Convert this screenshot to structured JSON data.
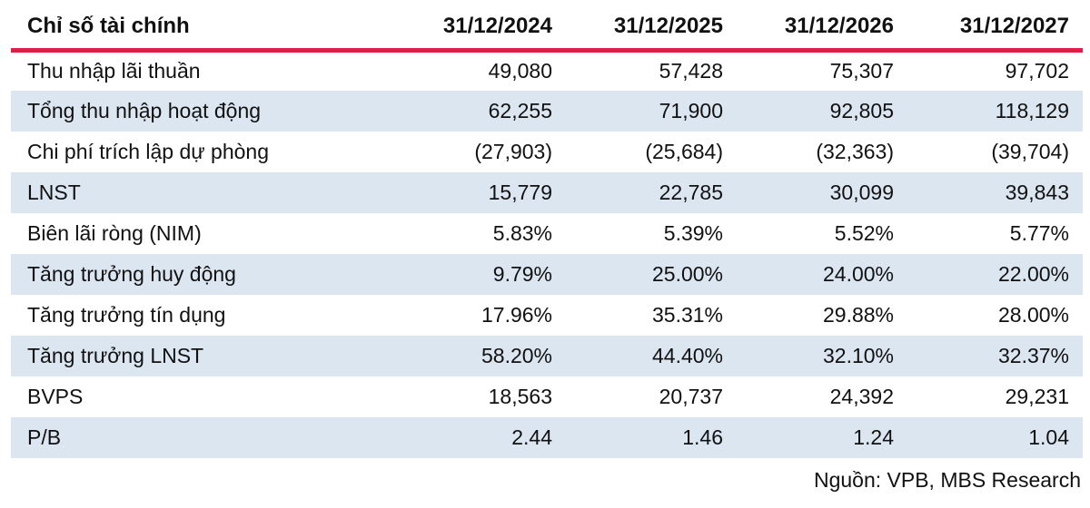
{
  "chart_data": {
    "type": "table",
    "title": "Chỉ số tài chính",
    "header": {
      "label": "Chỉ số tài chính",
      "dates": [
        "31/12/2024",
        "31/12/2025",
        "31/12/2026",
        "31/12/2027"
      ]
    },
    "rows": [
      {
        "label": "Thu nhập lãi thuần",
        "values": [
          "49,080",
          "57,428",
          "75,307",
          "97,702"
        ]
      },
      {
        "label": "Tổng thu nhập hoạt động",
        "values": [
          "62,255",
          "71,900",
          "92,805",
          "118,129"
        ]
      },
      {
        "label": "Chi phí trích lập dự phòng",
        "values": [
          "(27,903)",
          "(25,684)",
          "(32,363)",
          "(39,704)"
        ]
      },
      {
        "label": "LNST",
        "values": [
          "15,779",
          "22,785",
          "30,099",
          "39,843"
        ]
      },
      {
        "label": "Biên lãi ròng (NIM)",
        "values": [
          "5.83%",
          "5.39%",
          "5.52%",
          "5.77%"
        ]
      },
      {
        "label": "Tăng trưởng huy động",
        "values": [
          "9.79%",
          "25.00%",
          "24.00%",
          "22.00%"
        ]
      },
      {
        "label": "Tăng trưởng tín dụng",
        "values": [
          "17.96%",
          "35.31%",
          "29.88%",
          "28.00%"
        ]
      },
      {
        "label": "Tăng trưởng LNST",
        "values": [
          "58.20%",
          "44.40%",
          "32.10%",
          "32.37%"
        ]
      },
      {
        "label": "BVPS",
        "values": [
          "18,563",
          "20,737",
          "24,392",
          "29,231"
        ]
      },
      {
        "label": "P/B",
        "values": [
          "2.44",
          "1.46",
          "1.24",
          "1.04"
        ]
      }
    ],
    "source_note": "Nguồn: VPB, MBS Research",
    "layout": {
      "grid": false,
      "row_striping": "even rows light blue",
      "value_alignment": "right"
    }
  },
  "colors": {
    "accent_red_rule": "#E11C46",
    "row_alt_blue": "#DCE6F1",
    "text": "#111111",
    "background": "#FFFFFF"
  }
}
